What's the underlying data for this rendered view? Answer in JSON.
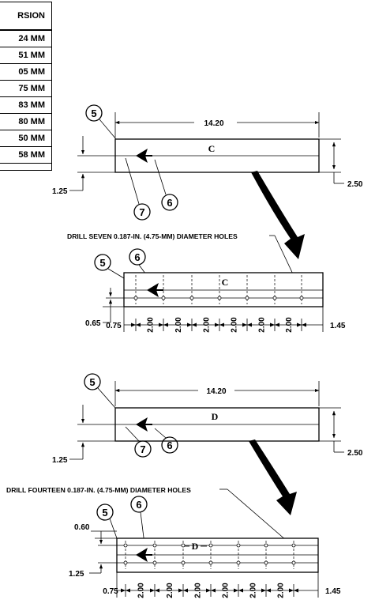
{
  "conversion_table": {
    "header": "RSION",
    "rows": [
      "24 MM",
      "51 MM",
      "05 MM",
      "75 MM",
      "83 MM",
      "80 MM",
      "50 MM",
      "58 MM"
    ]
  },
  "callouts": {
    "five": "5",
    "six": "6",
    "seven": "7"
  },
  "part_c": {
    "letter": "C",
    "top_length": "14.20",
    "height": "2.50",
    "hole_row_offset": "1.25",
    "drill_note": "DRILL SEVEN 0.187-IN. (4.75-MM) DIAMETER HOLES",
    "drilled_hole_offset": "0.65",
    "start_offset": "0.75",
    "end_offset": "1.45",
    "spacing": "2.00",
    "spacing_count": 6
  },
  "part_d": {
    "letter": "D",
    "top_length": "14.20",
    "height": "2.50",
    "hole_row_offset": "1.25",
    "drill_note": "DRILL FOURTEEN 0.187-IN. (4.75-MM) DIAMETER HOLES",
    "top_hole_offset": "0.60",
    "bottom_hole_offset": "1.25",
    "start_offset": "0.75",
    "end_offset": "1.45",
    "spacing": "2.00",
    "spacing_count": 6
  }
}
